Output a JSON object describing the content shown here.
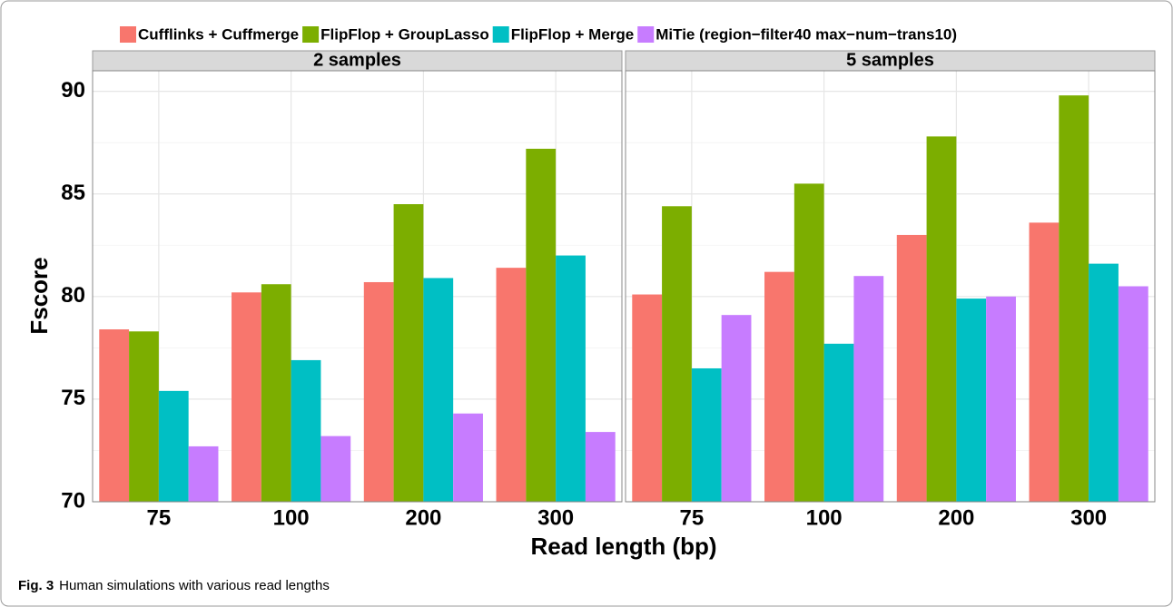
{
  "chart_data": {
    "type": "bar",
    "xlabel": "Read length (bp)",
    "ylabel": "Fscore",
    "categories": [
      "75",
      "100",
      "200",
      "300"
    ],
    "ylim": [
      70,
      91
    ],
    "yticks": [
      70,
      75,
      80,
      85,
      90
    ],
    "grid": true,
    "series": [
      {
        "name": "Cufflinks + Cuffmerge",
        "color": "#f8766d"
      },
      {
        "name": "FlipFlop + GroupLasso",
        "color": "#7cae00"
      },
      {
        "name": "FlipFlop + Merge",
        "color": "#00bfc4"
      },
      {
        "name": "MiTie (region−filter40 max−num−trans10)",
        "color": "#c77cff"
      }
    ],
    "facets": [
      {
        "title": "2 samples",
        "values": [
          [
            78.4,
            80.2,
            80.7,
            81.4
          ],
          [
            78.3,
            80.6,
            84.5,
            87.2
          ],
          [
            75.4,
            76.9,
            80.9,
            82.0
          ],
          [
            72.7,
            73.2,
            74.3,
            73.4
          ]
        ]
      },
      {
        "title": "5 samples",
        "values": [
          [
            80.1,
            81.2,
            83.0,
            83.6
          ],
          [
            84.4,
            85.5,
            87.8,
            89.8
          ],
          [
            76.5,
            77.7,
            79.9,
            81.6
          ],
          [
            79.1,
            81.0,
            80.0,
            80.5
          ]
        ]
      }
    ]
  },
  "caption": {
    "label": "Fig. 3",
    "text": "Human simulations with various read lengths"
  }
}
